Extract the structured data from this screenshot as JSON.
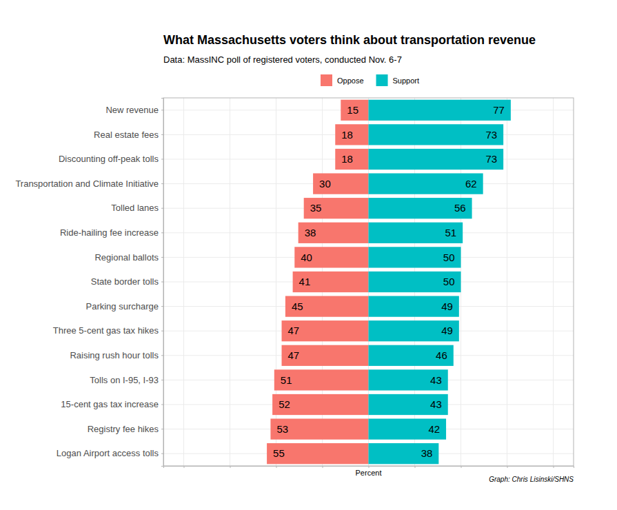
{
  "chart_data": {
    "type": "bar",
    "orientation": "horizontal",
    "title": "What Massachusetts voters think about transportation revenue",
    "subtitle": "Data: MassINC poll of registered voters, conducted Nov. 6-7",
    "xlabel": "Percent",
    "caption": "Graph: Chris Lisinski/SHNS",
    "categories": [
      "New revenue",
      "Real estate fees",
      "Discounting off-peak tolls",
      "Transportation and Climate Initiative",
      "Tolled lanes",
      "Ride-hailing fee increase",
      "Regional ballots",
      "State border tolls",
      "Parking surcharge",
      "Three 5-cent gas tax hikes",
      "Raising rush hour tolls",
      "Tolls on I-95, I-93",
      "15-cent gas tax increase",
      "Registry fee hikes",
      "Logan Airport access tolls"
    ],
    "series": [
      {
        "name": "Oppose",
        "color": "#F8766D",
        "values": [
          15,
          18,
          18,
          30,
          35,
          38,
          40,
          41,
          45,
          47,
          47,
          51,
          52,
          53,
          55
        ]
      },
      {
        "name": "Support",
        "color": "#00BFC4",
        "values": [
          77,
          73,
          73,
          62,
          56,
          51,
          50,
          50,
          49,
          49,
          46,
          43,
          43,
          42,
          38
        ]
      }
    ],
    "xlim": [
      -111,
      111
    ],
    "xticks": [
      -100,
      -75,
      -50,
      -25,
      0,
      25,
      50,
      75,
      100
    ],
    "grid": true,
    "legend": "top",
    "data_labels": true,
    "tick_labels": "y"
  }
}
